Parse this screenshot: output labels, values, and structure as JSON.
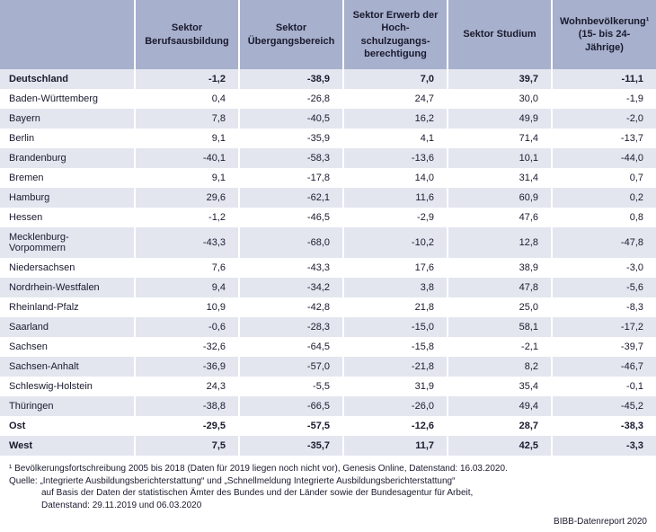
{
  "table": {
    "header_bg": "#a7b0cc",
    "row_band_bg": "#e3e6ef",
    "row_alt_bg": "#ffffff",
    "text_color": "#1a1a2e",
    "columns": [
      "",
      "Sektor Berufsausbildung",
      "Sektor Übergangsbereich",
      "Sektor Erwerb der Hoch­schulzugangs­berechtigung",
      "Sektor Studium",
      "Wohnbevölkerung¹ (15- bis 24-Jährige)"
    ],
    "rows": [
      {
        "bold": true,
        "cells": [
          "Deutschland",
          "-1,2",
          "-38,9",
          "7,0",
          "39,7",
          "-11,1"
        ]
      },
      {
        "bold": false,
        "cells": [
          "Baden-Württemberg",
          "0,4",
          "-26,8",
          "24,7",
          "30,0",
          "-1,9"
        ]
      },
      {
        "bold": false,
        "cells": [
          "Bayern",
          "7,8",
          "-40,5",
          "16,2",
          "49,9",
          "-2,0"
        ]
      },
      {
        "bold": false,
        "cells": [
          "Berlin",
          "9,1",
          "-35,9",
          "4,1",
          "71,4",
          "-13,7"
        ]
      },
      {
        "bold": false,
        "cells": [
          "Brandenburg",
          "-40,1",
          "-58,3",
          "-13,6",
          "10,1",
          "-44,0"
        ]
      },
      {
        "bold": false,
        "cells": [
          "Bremen",
          "9,1",
          "-17,8",
          "14,0",
          "31,4",
          "0,7"
        ]
      },
      {
        "bold": false,
        "cells": [
          "Hamburg",
          "29,6",
          "-62,1",
          "11,6",
          "60,9",
          "0,2"
        ]
      },
      {
        "bold": false,
        "cells": [
          "Hessen",
          "-1,2",
          "-46,5",
          "-2,9",
          "47,6",
          "0,8"
        ]
      },
      {
        "bold": false,
        "cells": [
          "Mecklenburg-Vorpommern",
          "-43,3",
          "-68,0",
          "-10,2",
          "12,8",
          "-47,8"
        ]
      },
      {
        "bold": false,
        "cells": [
          "Niedersachsen",
          "7,6",
          "-43,3",
          "17,6",
          "38,9",
          "-3,0"
        ]
      },
      {
        "bold": false,
        "cells": [
          "Nordrhein-Westfalen",
          "9,4",
          "-34,2",
          "3,8",
          "47,8",
          "-5,6"
        ]
      },
      {
        "bold": false,
        "cells": [
          "Rheinland-Pfalz",
          "10,9",
          "-42,8",
          "21,8",
          "25,0",
          "-8,3"
        ]
      },
      {
        "bold": false,
        "cells": [
          "Saarland",
          "-0,6",
          "-28,3",
          "-15,0",
          "58,1",
          "-17,2"
        ]
      },
      {
        "bold": false,
        "cells": [
          "Sachsen",
          "-32,6",
          "-64,5",
          "-15,8",
          "-2,1",
          "-39,7"
        ]
      },
      {
        "bold": false,
        "cells": [
          "Sachsen-Anhalt",
          "-36,9",
          "-57,0",
          "-21,8",
          "8,2",
          "-46,7"
        ]
      },
      {
        "bold": false,
        "cells": [
          "Schleswig-Holstein",
          "24,3",
          "-5,5",
          "31,9",
          "35,4",
          "-0,1"
        ]
      },
      {
        "bold": false,
        "cells": [
          "Thüringen",
          "-38,8",
          "-66,5",
          "-26,0",
          "49,4",
          "-45,2"
        ]
      },
      {
        "bold": true,
        "cells": [
          "Ost",
          "-29,5",
          "-57,5",
          "-12,6",
          "28,7",
          "-38,3"
        ]
      },
      {
        "bold": true,
        "cells": [
          "West",
          "7,5",
          "-35,7",
          "11,7",
          "42,5",
          "-3,3"
        ]
      }
    ]
  },
  "footnotes": {
    "note1": "¹ Bevölkerungsfortschreibung 2005 bis 2018 (Daten für 2019 liegen noch nicht vor), Genesis Online, Datenstand: 16.03.2020.",
    "source_l1": "Quelle: „Integrierte Ausbildungsberichterstattung“ und „Schnellmeldung Integrierte Ausbildungsberichterstattung“",
    "source_l2": "auf Basis der Daten der statistischen Ämter des Bundes und der Länder sowie der Bundesagentur für Arbeit,",
    "source_l3": "Datenstand: 29.11.2019 und 06.03.2020"
  },
  "attribution": "BIBB-Datenreport 2020"
}
